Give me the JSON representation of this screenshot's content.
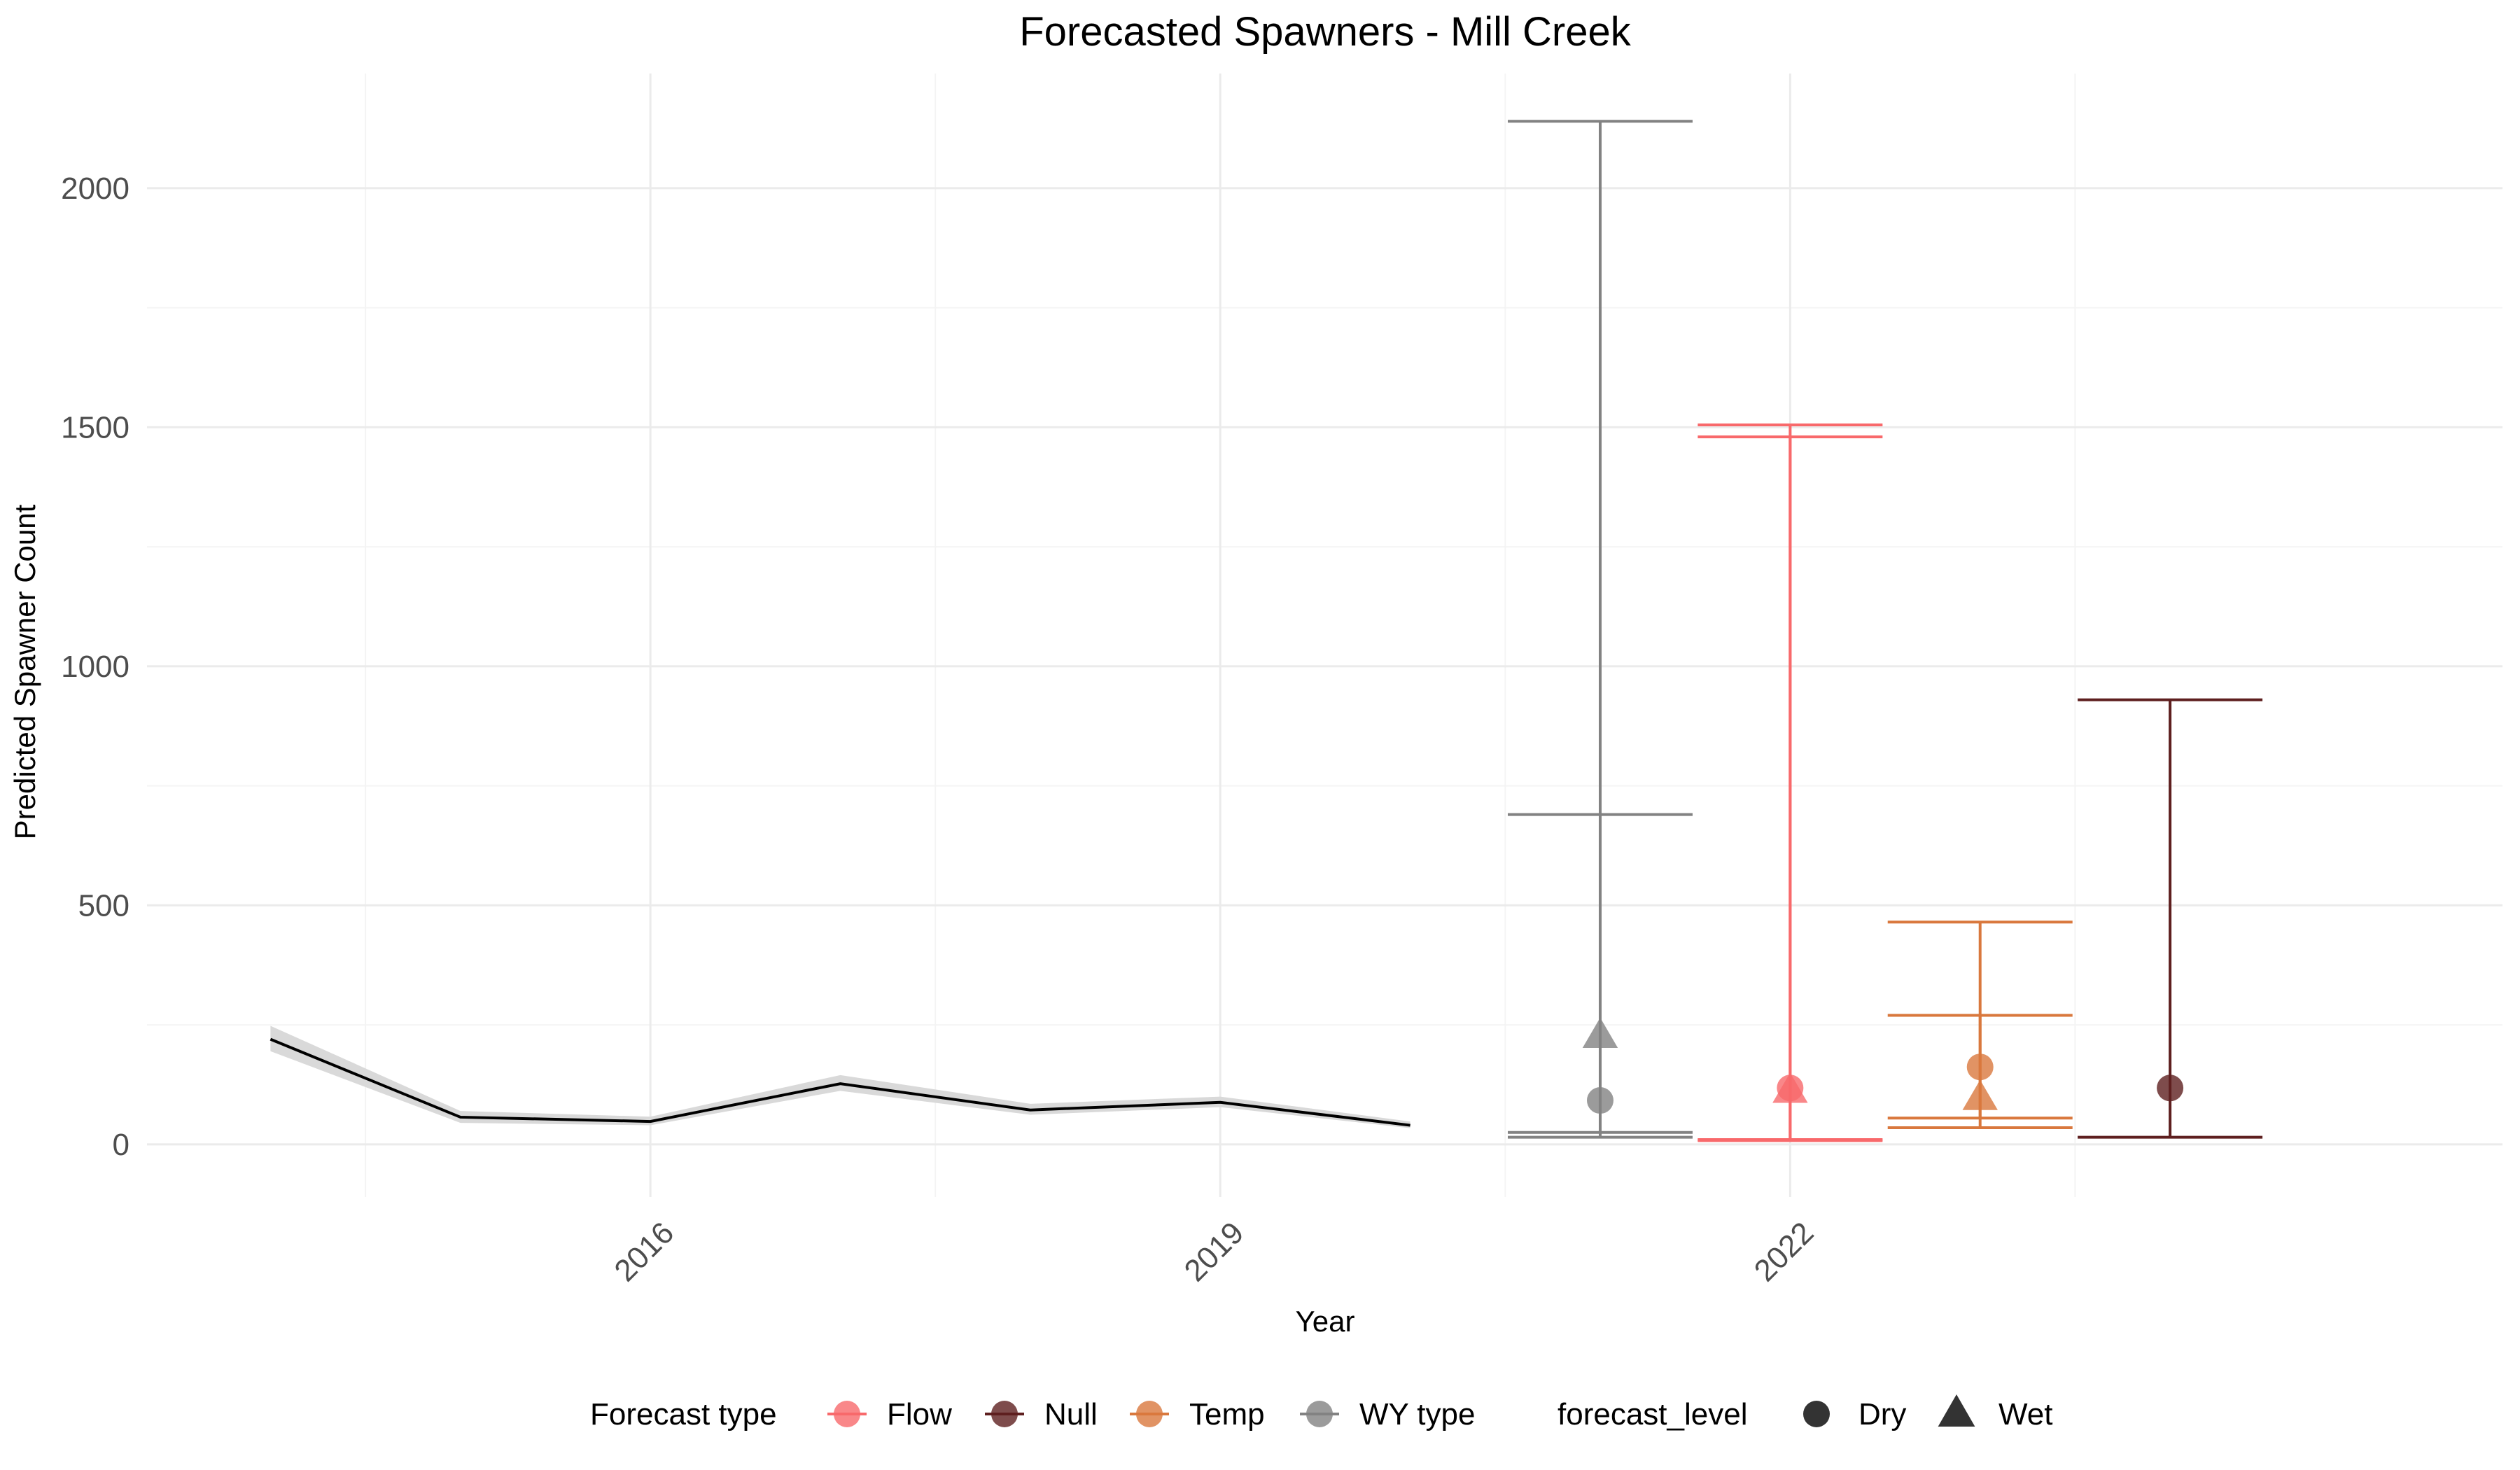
{
  "chart_data": {
    "type": "line",
    "title": "Forecasted Spawners - Mill Creek",
    "xlabel": "Year",
    "ylabel": "Predicted Spawner Count",
    "xlim": [
      2013.35,
      2025.75
    ],
    "ylim": [
      -110,
      2240
    ],
    "x_ticks": [
      2016,
      2019,
      2022
    ],
    "x_tick_labels": [
      "2016",
      "2019",
      "2022"
    ],
    "y_ticks": [
      0,
      500,
      1000,
      1500,
      2000
    ],
    "y_tick_labels": [
      "0",
      "500",
      "1000",
      "1500",
      "2000"
    ],
    "grid": true,
    "legend_position": "bottom",
    "history": {
      "x": [
        2014,
        2015,
        2016,
        2017,
        2018,
        2019,
        2020
      ],
      "y": [
        220,
        57,
        48,
        127,
        72,
        88,
        40
      ],
      "lower": [
        195,
        45,
        40,
        112,
        62,
        78,
        34
      ],
      "upper": [
        248,
        70,
        58,
        145,
        85,
        100,
        48
      ],
      "color": "#000000",
      "band_color": "#d9d9d9"
    },
    "forecasts": [
      {
        "type": "WY type",
        "level": "Wet",
        "x": 2021.0,
        "y": 230,
        "lower": 15,
        "upper": 690
      },
      {
        "type": "WY type",
        "level": "Dry",
        "x": 2021.0,
        "y": 92,
        "lower": 25,
        "upper": 2140
      },
      {
        "type": "Flow",
        "level": "Wet",
        "x": 2022.0,
        "y": 115,
        "lower": 10,
        "upper": 1480
      },
      {
        "type": "Flow",
        "level": "Dry",
        "x": 2022.0,
        "y": 118,
        "lower": 8,
        "upper": 1505
      },
      {
        "type": "Temp",
        "level": "Wet",
        "x": 2023.0,
        "y": 100,
        "lower": 55,
        "upper": 270
      },
      {
        "type": "Temp",
        "level": "Dry",
        "x": 2023.0,
        "y": 162,
        "lower": 35,
        "upper": 465
      },
      {
        "type": "Null",
        "level": "Dry",
        "x": 2024.0,
        "y": 118,
        "lower": 15,
        "upper": 930
      }
    ],
    "legend_type_title": "Forecast type",
    "legend_types": [
      {
        "name": "Flow",
        "color": "#f8696b"
      },
      {
        "name": "Null",
        "color": "#5e1f1f"
      },
      {
        "name": "Temp",
        "color": "#d9783d"
      },
      {
        "name": "WY type",
        "color": "#828282"
      }
    ],
    "legend_level_title": "forecast_level",
    "legend_levels": [
      {
        "name": "Dry",
        "shape": "circle"
      },
      {
        "name": "Wet",
        "shape": "triangle"
      }
    ]
  }
}
